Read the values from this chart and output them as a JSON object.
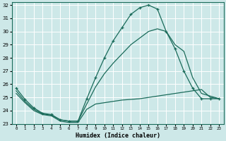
{
  "xlabel": "Humidex (Indice chaleur)",
  "xlim": [
    -0.5,
    23.5
  ],
  "ylim": [
    23,
    32.2
  ],
  "yticks": [
    23,
    24,
    25,
    26,
    27,
    28,
    29,
    30,
    31,
    32
  ],
  "xticks": [
    0,
    1,
    2,
    3,
    4,
    5,
    6,
    7,
    8,
    9,
    10,
    11,
    12,
    13,
    14,
    15,
    16,
    17,
    18,
    19,
    20,
    21,
    22,
    23
  ],
  "bg_color": "#cde8e8",
  "grid_color": "#b0d4d4",
  "line_color": "#1a6b5a",
  "line1_x": [
    0,
    1,
    2,
    3,
    4,
    5,
    6,
    7,
    8,
    9,
    10,
    11,
    12,
    13,
    14,
    15,
    16,
    17,
    18,
    19,
    20,
    21,
    22,
    23
  ],
  "line1_y": [
    25.7,
    24.85,
    24.2,
    23.8,
    23.7,
    23.3,
    23.2,
    23.2,
    24.9,
    26.5,
    28.0,
    29.3,
    30.3,
    31.3,
    31.8,
    32.0,
    31.7,
    30.0,
    28.7,
    27.0,
    25.7,
    24.9,
    24.9,
    24.9
  ],
  "line2_x": [
    0,
    1,
    2,
    3,
    4,
    5,
    6,
    7,
    8,
    9,
    10,
    11,
    12,
    13,
    14,
    15,
    16,
    17,
    18,
    19,
    20,
    21,
    22,
    23
  ],
  "line2_y": [
    25.5,
    24.7,
    24.1,
    23.75,
    23.65,
    23.3,
    23.2,
    23.2,
    24.5,
    25.8,
    26.8,
    27.6,
    28.3,
    29.0,
    29.5,
    30.0,
    30.2,
    30.0,
    29.0,
    28.5,
    26.5,
    25.3,
    25.1,
    24.9
  ],
  "line3_x": [
    0,
    1,
    2,
    3,
    4,
    5,
    6,
    7,
    8,
    9,
    10,
    11,
    12,
    13,
    14,
    15,
    16,
    17,
    18,
    19,
    20,
    21,
    22,
    23
  ],
  "line3_y": [
    25.3,
    24.6,
    24.0,
    23.7,
    23.6,
    23.2,
    23.1,
    23.1,
    24.1,
    24.5,
    24.6,
    24.7,
    24.8,
    24.85,
    24.9,
    25.0,
    25.1,
    25.2,
    25.3,
    25.4,
    25.5,
    25.6,
    25.0,
    24.9
  ]
}
